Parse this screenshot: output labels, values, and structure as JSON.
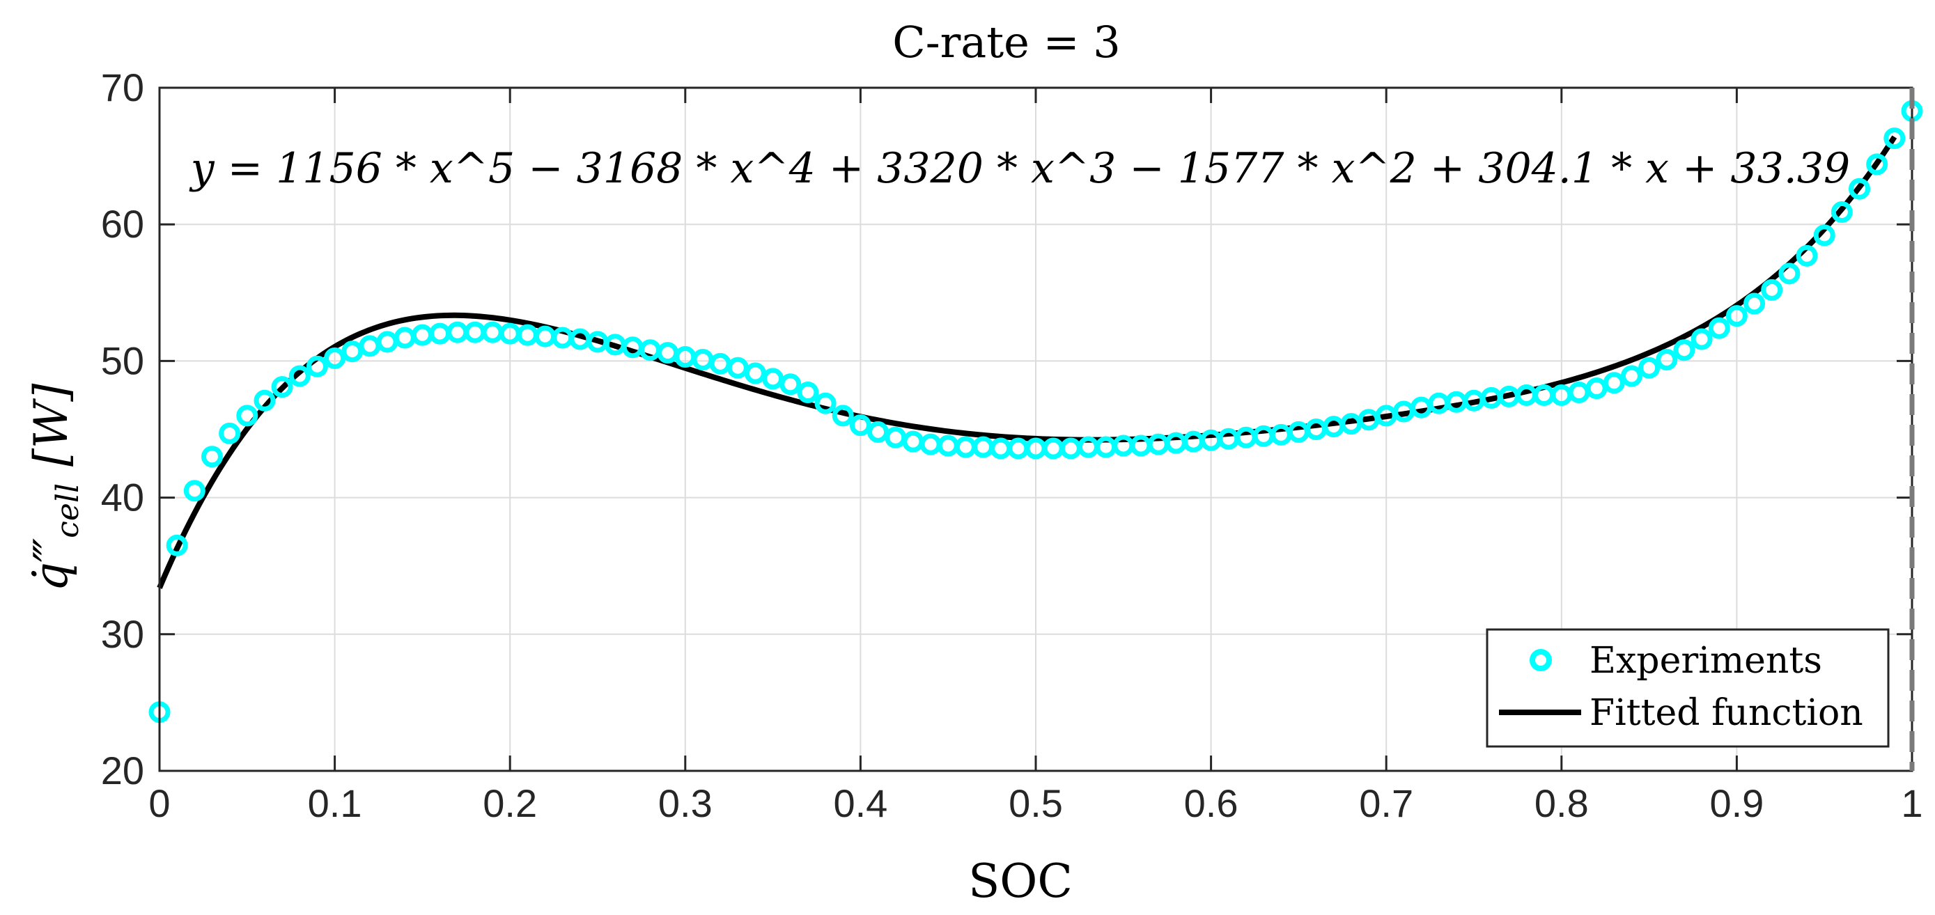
{
  "chart_data": {
    "type": "scatter",
    "title": "C-rate = 3",
    "xlabel": "SOC",
    "ylabel": "q̇‴",
    "ylabel_sub": "cell",
    "ylabel_unit": "[W]",
    "xlim": [
      0,
      1
    ],
    "ylim": [
      20,
      70
    ],
    "grid": true,
    "x_ticks": [
      0,
      0.1,
      0.2,
      0.3,
      0.4,
      0.5,
      0.6,
      0.7,
      0.8,
      0.9,
      1
    ],
    "x_tick_labels": [
      "0",
      "0.1",
      "0.2",
      "0.3",
      "0.4",
      "0.5",
      "0.6",
      "0.7",
      "0.8",
      "0.9",
      "1"
    ],
    "y_ticks": [
      20,
      30,
      40,
      50,
      60,
      70
    ],
    "y_tick_labels": [
      "20",
      "30",
      "40",
      "50",
      "60",
      "70"
    ],
    "annotation": "y = 1156 * x^5 − 3168 * x^4 + 3320 * x^3 − 1577 * x^2 + 304.1 * x + 33.39",
    "legend_position": "bottom-right",
    "series": [
      {
        "name": "Experiments",
        "kind": "markers",
        "color": "#00FFFF",
        "x": [
          0.0,
          0.01,
          0.02,
          0.03,
          0.04,
          0.05,
          0.06,
          0.07,
          0.08,
          0.09,
          0.1,
          0.11,
          0.12,
          0.13,
          0.14,
          0.15,
          0.16,
          0.17,
          0.18,
          0.19,
          0.2,
          0.21,
          0.22,
          0.23,
          0.24,
          0.25,
          0.26,
          0.27,
          0.28,
          0.29,
          0.3,
          0.31,
          0.32,
          0.33,
          0.34,
          0.35,
          0.36,
          0.37,
          0.38,
          0.39,
          0.4,
          0.41,
          0.42,
          0.43,
          0.44,
          0.45,
          0.46,
          0.47,
          0.48,
          0.49,
          0.5,
          0.51,
          0.52,
          0.53,
          0.54,
          0.55,
          0.56,
          0.57,
          0.58,
          0.59,
          0.6,
          0.61,
          0.62,
          0.63,
          0.64,
          0.65,
          0.66,
          0.67,
          0.68,
          0.69,
          0.7,
          0.71,
          0.72,
          0.73,
          0.74,
          0.75,
          0.76,
          0.77,
          0.78,
          0.79,
          0.8,
          0.81,
          0.82,
          0.83,
          0.84,
          0.85,
          0.86,
          0.87,
          0.88,
          0.89,
          0.9,
          0.91,
          0.92,
          0.93,
          0.94,
          0.95,
          0.96,
          0.97,
          0.98,
          0.99,
          1.0
        ],
        "y": [
          24.3,
          36.5,
          40.5,
          43.0,
          44.7,
          46.0,
          47.1,
          48.1,
          48.9,
          49.6,
          50.2,
          50.7,
          51.1,
          51.4,
          51.7,
          51.9,
          52.0,
          52.1,
          52.1,
          52.1,
          52.0,
          51.9,
          51.8,
          51.7,
          51.6,
          51.4,
          51.2,
          51.0,
          50.8,
          50.6,
          50.3,
          50.1,
          49.8,
          49.5,
          49.1,
          48.7,
          48.3,
          47.7,
          46.9,
          46.0,
          45.3,
          44.8,
          44.4,
          44.1,
          43.9,
          43.8,
          43.7,
          43.7,
          43.6,
          43.6,
          43.6,
          43.6,
          43.6,
          43.7,
          43.7,
          43.8,
          43.8,
          43.9,
          44.0,
          44.1,
          44.2,
          44.3,
          44.4,
          44.5,
          44.6,
          44.8,
          45.0,
          45.2,
          45.4,
          45.7,
          46.0,
          46.3,
          46.6,
          46.9,
          47.0,
          47.1,
          47.3,
          47.4,
          47.5,
          47.5,
          47.5,
          47.7,
          48.0,
          48.4,
          48.9,
          49.5,
          50.1,
          50.8,
          51.6,
          52.4,
          53.3,
          54.2,
          55.2,
          56.4,
          57.7,
          59.2,
          60.9,
          62.6,
          64.4,
          66.3,
          68.3
        ]
      },
      {
        "name": "Fitted function",
        "kind": "line",
        "color": "#000000",
        "coefficients": [
          1156,
          -3168,
          3320,
          -1577,
          304.1,
          33.39
        ],
        "x_range": [
          0,
          0.99
        ]
      }
    ],
    "vertical_dashed_line_x": 1.0
  }
}
